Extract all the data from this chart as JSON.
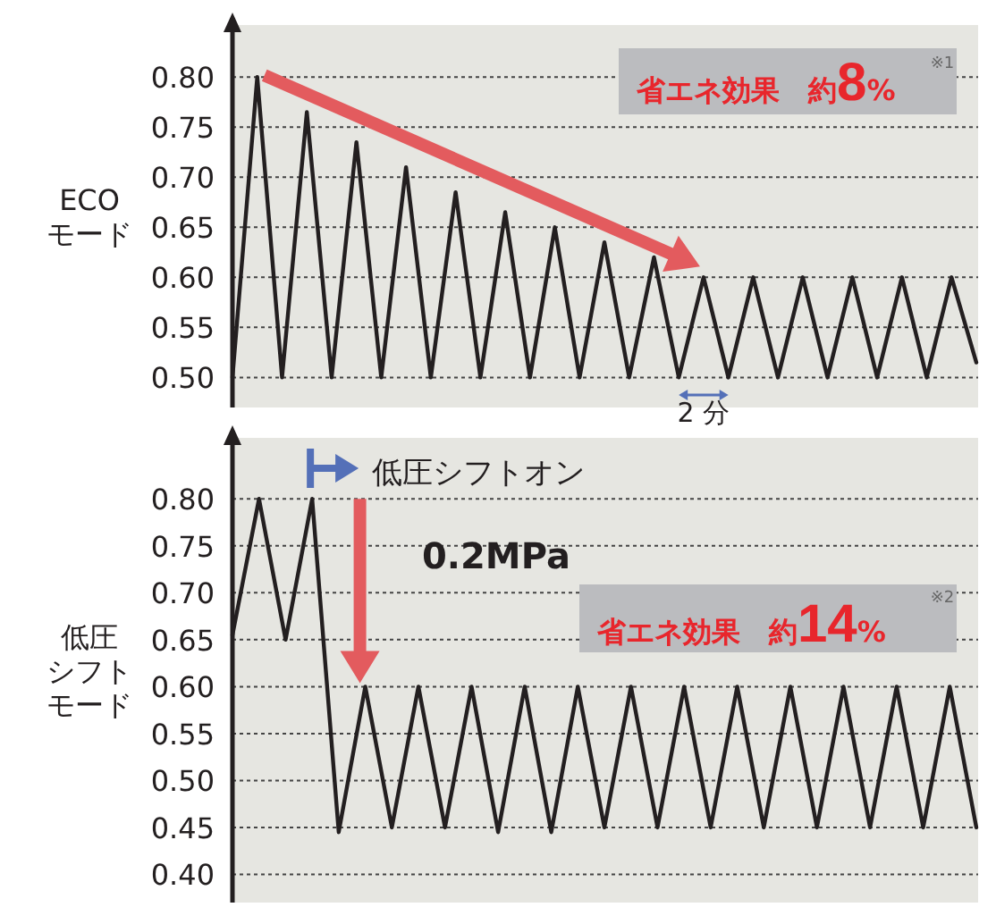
{
  "chart_data": [
    {
      "type": "line",
      "ylabel": "ECO\nモード",
      "annotations": [
        "省エネ効果　約8%",
        "※1",
        "2 分"
      ],
      "grid": "y",
      "line_style": "solid",
      "marker": "none",
      "tick_labels": "y",
      "categories": [
        null,
        null,
        null,
        null,
        null,
        null,
        null,
        null,
        null,
        null,
        null,
        null,
        null,
        null,
        null,
        null,
        null,
        null,
        null,
        null,
        null,
        null,
        null,
        null,
        null,
        null,
        null,
        null,
        null,
        null,
        null
      ],
      "ylim": [
        0.47,
        0.852
      ],
      "yticks": [
        {
          "value": 0.5,
          "label": "0.50"
        },
        {
          "value": 0.55,
          "label": "0.55"
        },
        {
          "value": 0.6,
          "label": "0.60"
        },
        {
          "value": 0.65,
          "label": "0.65"
        },
        {
          "value": 0.7,
          "label": "0.70"
        },
        {
          "value": 0.75,
          "label": "0.75"
        },
        {
          "value": 0.8,
          "label": "0.80"
        }
      ],
      "series": [
        {
          "color": "#231f20",
          "values": [
            0.5,
            0.8,
            0.5,
            0.765,
            0.5,
            0.735,
            0.5,
            0.71,
            0.5,
            0.685,
            0.5,
            0.665,
            0.5,
            0.65,
            0.5,
            0.635,
            0.5,
            0.62,
            0.5,
            0.6,
            0.5,
            0.6,
            0.5,
            0.6,
            0.5,
            0.6,
            0.5,
            0.6,
            0.5,
            0.6,
            0.515
          ]
        }
      ]
    },
    {
      "type": "line",
      "ylabel": "低圧シフトモード",
      "annotations": [
        "低圧シフトオン",
        "0.2MPa",
        "省エネ効果　約14%",
        "※2"
      ],
      "grid": "y",
      "line_style": "solid",
      "marker": "none",
      "tick_labels": "y",
      "categories": [
        null,
        null,
        null,
        null,
        null,
        null,
        null,
        null,
        null,
        null,
        null,
        null,
        null,
        null,
        null,
        null,
        null,
        null,
        null,
        null,
        null,
        null,
        null,
        null,
        null,
        null,
        null,
        null,
        null
      ],
      "ylim": [
        0.37,
        0.865
      ],
      "yticks": [
        {
          "value": 0.4,
          "label": "0.40"
        },
        {
          "value": 0.45,
          "label": "0.45"
        },
        {
          "value": 0.5,
          "label": "0.50"
        },
        {
          "value": 0.55,
          "label": "0.55"
        },
        {
          "value": 0.6,
          "label": "0.60"
        },
        {
          "value": 0.65,
          "label": "0.65"
        },
        {
          "value": 0.7,
          "label": "0.70"
        },
        {
          "value": 0.75,
          "label": "0.75"
        },
        {
          "value": 0.8,
          "label": "0.80"
        }
      ],
      "series": [
        {
          "color": "#231f20",
          "values": [
            0.655,
            0.8,
            0.65,
            0.8,
            0.445,
            0.6,
            0.45,
            0.6,
            0.45,
            0.6,
            0.445,
            0.6,
            0.445,
            0.6,
            0.45,
            0.6,
            0.45,
            0.6,
            0.45,
            0.6,
            0.45,
            0.6,
            0.45,
            0.6,
            0.45,
            0.6,
            0.45,
            0.6,
            0.45
          ]
        }
      ]
    }
  ]
}
